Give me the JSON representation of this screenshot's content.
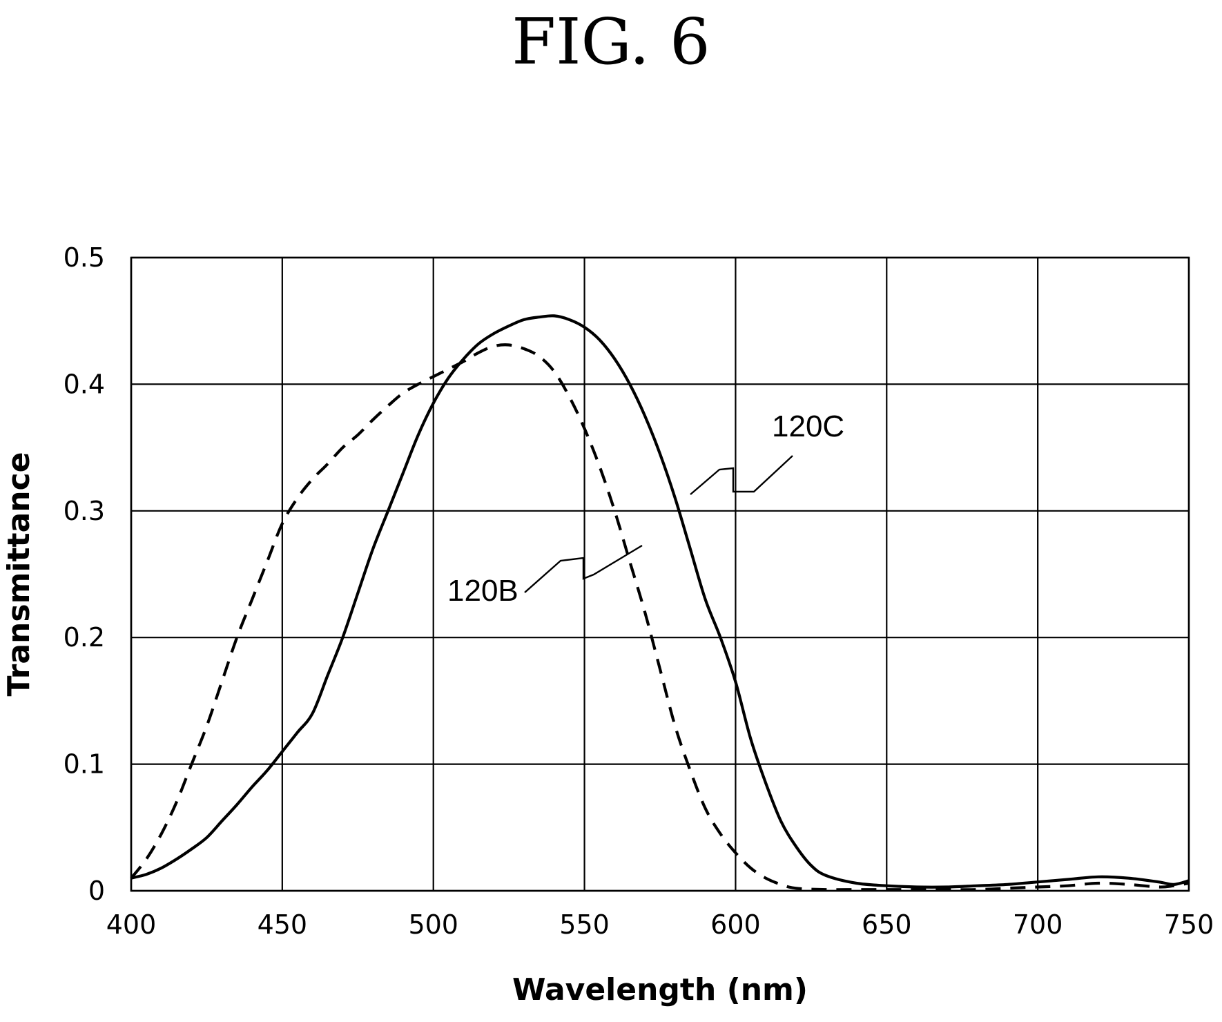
{
  "figure_title": "FIG. 6",
  "chart_data": {
    "type": "line",
    "title": "",
    "xlabel": "Wavelength (nm)",
    "ylabel": "Transmittance",
    "xlim": [
      400,
      750
    ],
    "ylim": [
      0,
      0.5
    ],
    "x_ticks": [
      400,
      450,
      500,
      550,
      600,
      650,
      700,
      750
    ],
    "y_ticks": [
      0,
      0.1,
      0.2,
      0.3,
      0.4,
      0.5
    ],
    "x_tick_labels": [
      "400",
      "450",
      "500",
      "550",
      "600",
      "650",
      "700",
      "750"
    ],
    "y_tick_labels": [
      "0",
      "0.1",
      "0.2",
      "0.3",
      "0.4",
      "0.5"
    ],
    "grid": true,
    "legend": "none",
    "series": [
      {
        "name": "120B",
        "style": "dashed",
        "color": "#000000",
        "x": [
          400,
          405,
          410,
          415,
          420,
          425,
          430,
          435,
          440,
          445,
          450,
          455,
          460,
          465,
          470,
          475,
          480,
          485,
          490,
          495,
          500,
          505,
          510,
          515,
          520,
          525,
          530,
          535,
          540,
          545,
          550,
          555,
          560,
          565,
          570,
          575,
          580,
          585,
          590,
          595,
          600,
          605,
          610,
          615,
          620,
          630,
          640,
          650,
          660,
          670,
          680,
          690,
          700,
          710,
          720,
          730,
          740,
          745,
          750
        ],
        "values": [
          0.01,
          0.025,
          0.045,
          0.07,
          0.1,
          0.13,
          0.165,
          0.2,
          0.23,
          0.26,
          0.29,
          0.31,
          0.325,
          0.337,
          0.35,
          0.36,
          0.372,
          0.383,
          0.393,
          0.4,
          0.406,
          0.412,
          0.418,
          0.425,
          0.43,
          0.431,
          0.428,
          0.422,
          0.41,
          0.39,
          0.365,
          0.335,
          0.3,
          0.26,
          0.22,
          0.175,
          0.13,
          0.095,
          0.065,
          0.045,
          0.03,
          0.018,
          0.01,
          0.005,
          0.002,
          0.001,
          0.001,
          0.001,
          0.001,
          0.001,
          0.001,
          0.002,
          0.003,
          0.004,
          0.006,
          0.005,
          0.003,
          0.004,
          0.006
        ]
      },
      {
        "name": "120C",
        "style": "solid",
        "color": "#000000",
        "x": [
          400,
          405,
          410,
          415,
          420,
          425,
          430,
          435,
          440,
          445,
          450,
          455,
          460,
          465,
          470,
          475,
          480,
          485,
          490,
          495,
          500,
          505,
          510,
          515,
          520,
          525,
          530,
          535,
          540,
          545,
          550,
          555,
          560,
          565,
          570,
          575,
          580,
          585,
          590,
          595,
          600,
          605,
          610,
          615,
          620,
          625,
          630,
          640,
          650,
          660,
          670,
          680,
          690,
          700,
          710,
          720,
          730,
          740,
          745,
          750
        ],
        "values": [
          0.01,
          0.013,
          0.018,
          0.025,
          0.033,
          0.042,
          0.055,
          0.068,
          0.082,
          0.095,
          0.11,
          0.125,
          0.14,
          0.17,
          0.2,
          0.235,
          0.27,
          0.3,
          0.33,
          0.36,
          0.385,
          0.405,
          0.42,
          0.432,
          0.44,
          0.446,
          0.451,
          0.453,
          0.454,
          0.451,
          0.445,
          0.435,
          0.42,
          0.4,
          0.375,
          0.345,
          0.31,
          0.27,
          0.23,
          0.2,
          0.165,
          0.12,
          0.085,
          0.055,
          0.035,
          0.02,
          0.012,
          0.006,
          0.004,
          0.003,
          0.003,
          0.004,
          0.005,
          0.007,
          0.009,
          0.011,
          0.01,
          0.007,
          0.005,
          0.008
        ]
      }
    ],
    "annotations": [
      {
        "text": "120B",
        "target_series": "120B"
      },
      {
        "text": "120C",
        "target_series": "120C"
      }
    ]
  }
}
